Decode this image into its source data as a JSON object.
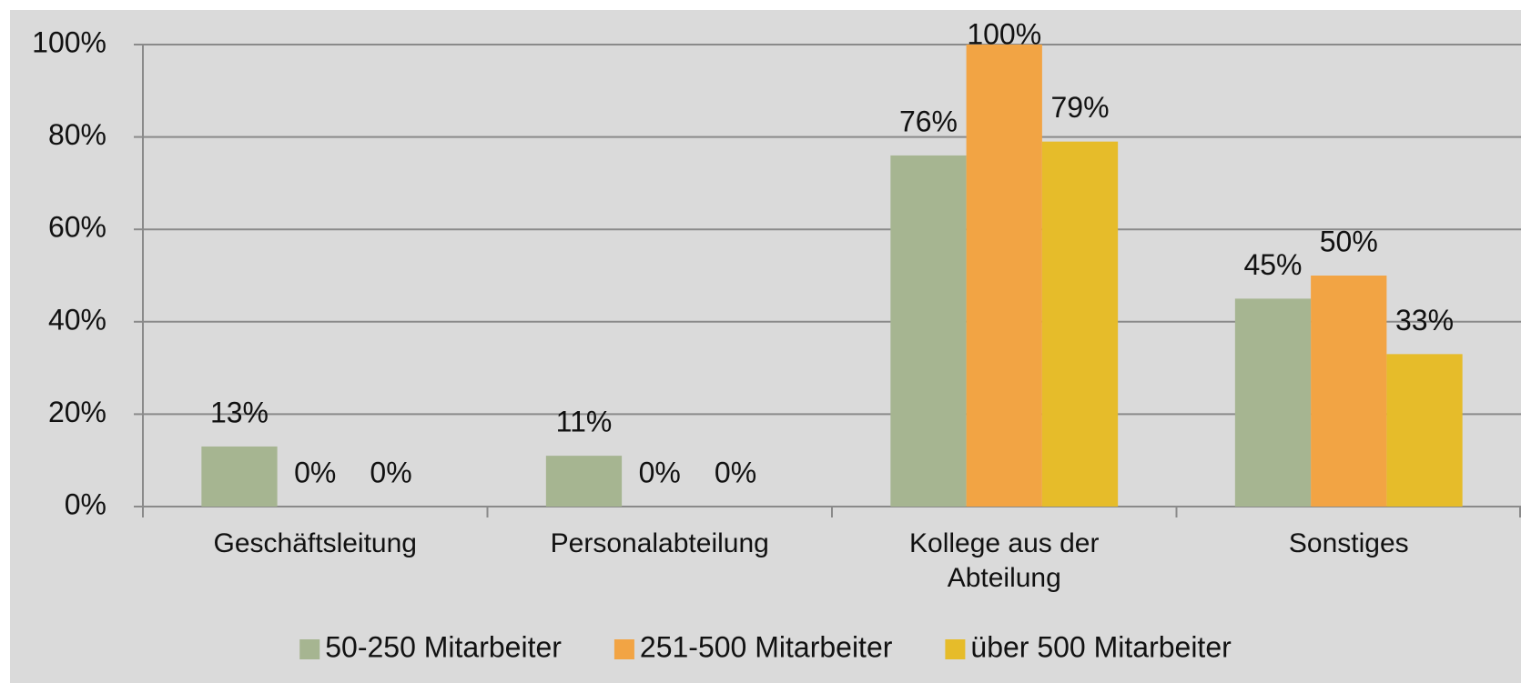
{
  "chart_data": {
    "type": "bar",
    "categories": [
      "Geschäftsleitung",
      "Personalabteilung",
      "Kollege aus der Abteilung",
      "Sonstiges"
    ],
    "series": [
      {
        "name": "50-250 Mitarbeiter",
        "color": "#a6b591",
        "values": [
          13,
          11,
          76,
          45
        ],
        "value_labels": [
          "13%",
          "11%",
          "76%",
          "45%"
        ]
      },
      {
        "name": "251-500 Mitarbeiter",
        "color": "#f2a444",
        "values": [
          0,
          0,
          100,
          50
        ],
        "value_labels": [
          "0%",
          "0%",
          "100%",
          "50%"
        ]
      },
      {
        "name": "über 500 Mitarbeiter",
        "color": "#e6bc2a",
        "values": [
          0,
          0,
          79,
          33
        ],
        "value_labels": [
          "0%",
          "0%",
          "79%",
          "33%"
        ]
      }
    ],
    "ylim": [
      0,
      100
    ],
    "yticks": [
      {
        "value": 0,
        "label": "0%"
      },
      {
        "value": 20,
        "label": "20%"
      },
      {
        "value": 40,
        "label": "40%"
      },
      {
        "value": 60,
        "label": "60%"
      },
      {
        "value": 80,
        "label": "80%"
      },
      {
        "value": 100,
        "label": "100%"
      }
    ],
    "grid": true,
    "legend": "bottom"
  }
}
